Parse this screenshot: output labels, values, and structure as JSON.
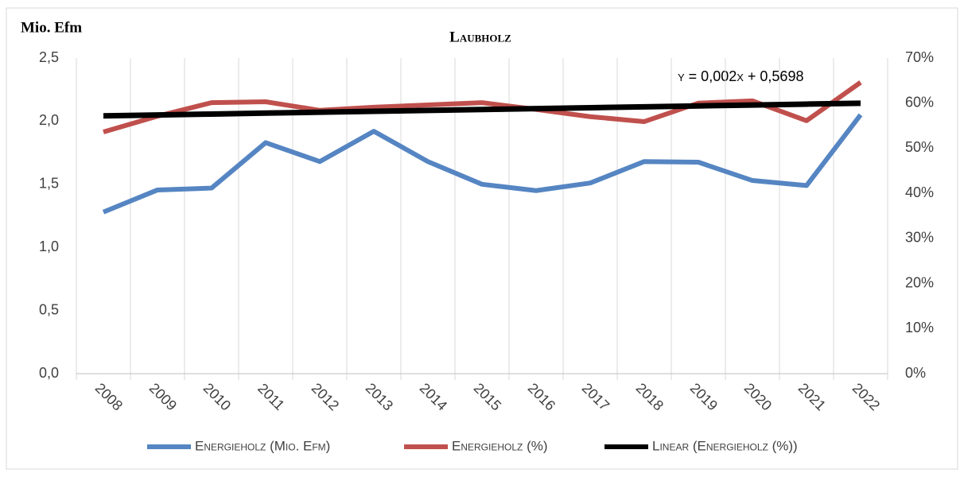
{
  "chart_data": {
    "type": "line",
    "title": "Laubholz",
    "y_label": "Mio. Efm",
    "annotation": "y = 0,002x + 0,5698",
    "categories": [
      "2008",
      "2009",
      "2010",
      "2011",
      "2012",
      "2013",
      "2014",
      "2015",
      "2016",
      "2017",
      "2018",
      "2019",
      "2020",
      "2021",
      "2022"
    ],
    "series": [
      {
        "name": "Energieholz (Mio. Efm)",
        "color": "#5585c2",
        "values": [
          1.28,
          1.455,
          1.47,
          1.83,
          1.68,
          1.92,
          1.68,
          1.5,
          1.45,
          1.51,
          1.68,
          1.675,
          1.53,
          1.49,
          2.05
        ]
      },
      {
        "name": "Energieholz (%)",
        "color": "#c0504d",
        "axis": "y2",
        "values": [
          53.6,
          57.1,
          60.1,
          60.3,
          58.4,
          59.1,
          59.6,
          60.1,
          58.6,
          57.0,
          55.9,
          60.0,
          60.5,
          56.1,
          64.6
        ]
      },
      {
        "name": "Linear (Energieholz (%))",
        "color": "#000000",
        "axis": "y2",
        "values": [
          57.18,
          57.38,
          57.58,
          57.78,
          57.98,
          58.18,
          58.38,
          58.58,
          58.78,
          58.98,
          59.18,
          59.38,
          59.58,
          59.78,
          59.98
        ]
      }
    ],
    "ylim": [
      0,
      2.5
    ],
    "yticks": [
      {
        "value": 0,
        "label": "0,0"
      },
      {
        "value": 0.5,
        "label": "0,5"
      },
      {
        "value": 1,
        "label": "1,0"
      },
      {
        "value": 1.5,
        "label": "1,5"
      },
      {
        "value": 2,
        "label": "2,0"
      },
      {
        "value": 2.5,
        "label": "2,5"
      }
    ],
    "y2lim": [
      0,
      70
    ],
    "y2ticks": [
      {
        "value": 0,
        "label": "0%"
      },
      {
        "value": 10,
        "label": "10%"
      },
      {
        "value": 20,
        "label": "20%"
      },
      {
        "value": 30,
        "label": "30%"
      },
      {
        "value": 40,
        "label": "40%"
      },
      {
        "value": 50,
        "label": "50%"
      },
      {
        "value": 60,
        "label": "60%"
      },
      {
        "value": 70,
        "label": "70%"
      }
    ],
    "legend": "bottom"
  }
}
